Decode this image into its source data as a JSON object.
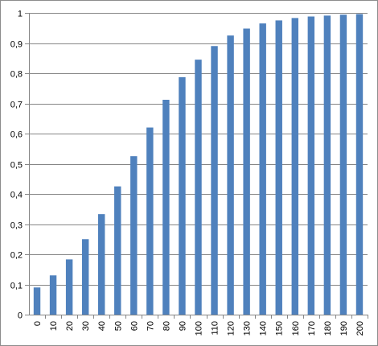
{
  "chart_data": {
    "type": "bar",
    "categories": [
      "0",
      "10",
      "20",
      "30",
      "40",
      "50",
      "60",
      "70",
      "80",
      "90",
      "100",
      "110",
      "120",
      "130",
      "140",
      "150",
      "160",
      "170",
      "180",
      "190",
      "200"
    ],
    "series": [
      {
        "values": [
          0.09,
          0.13,
          0.183,
          0.25,
          0.333,
          0.425,
          0.525,
          0.62,
          0.712,
          0.787,
          0.845,
          0.89,
          0.925,
          0.948,
          0.965,
          0.975,
          0.983,
          0.988,
          0.991,
          0.994,
          0.996
        ],
        "color": "#4f81bd"
      }
    ],
    "ylim": [
      0,
      1
    ],
    "y_ticks": [
      "0",
      "0,1",
      "0,2",
      "0,3",
      "0,4",
      "0,5",
      "0,6",
      "0,7",
      "0,8",
      "0,9",
      "1"
    ],
    "grid": true,
    "legend": "none",
    "xlabel": "",
    "ylabel": "",
    "title": ""
  }
}
